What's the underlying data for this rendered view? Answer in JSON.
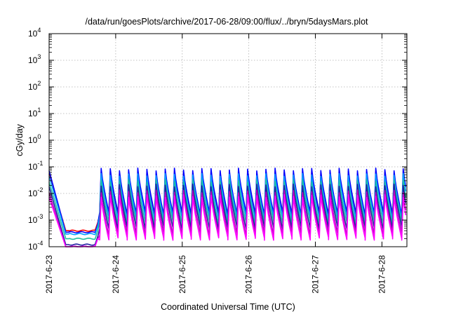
{
  "chart_data": {
    "type": "line",
    "title": "/data/run/goesPlots/archive/2017-06-28/09:00/flux/../bryn/5daysMars.plot",
    "xlabel": "Coordinated Universal Time (UTC)",
    "ylabel": "cGy/day",
    "yscale": "log",
    "ylim": [
      0.0001,
      10000
    ],
    "xlim": [
      "2017-06-23 00:00",
      "2017-06-28 09:00"
    ],
    "grid": true,
    "legend": "none",
    "x_ticks": [
      "2017-6-23",
      "2017-6-24",
      "2017-6-25",
      "2017-6-26",
      "2017-6-27",
      "2017-6-28"
    ],
    "y_ticks": [
      {
        "base": "10",
        "exp": "-4"
      },
      {
        "base": "10",
        "exp": "-3"
      },
      {
        "base": "10",
        "exp": "-2"
      },
      {
        "base": "10",
        "exp": "-1"
      },
      {
        "base": "10",
        "exp": "0"
      },
      {
        "base": "10",
        "exp": "1"
      },
      {
        "base": "10",
        "exp": "2"
      },
      {
        "base": "10",
        "exp": "3"
      },
      {
        "base": "10",
        "exp": "4"
      }
    ],
    "series": [
      {
        "color": "#ff0000",
        "peak": 0.06,
        "trough": 0.0015,
        "quiet": 0.0004
      },
      {
        "color": "#0000ff",
        "peak": 0.08,
        "trough": 0.0018,
        "quiet": 0.00035
      },
      {
        "color": "#00a0ff",
        "peak": 0.05,
        "trough": 0.0012,
        "quiet": 0.0003
      },
      {
        "color": "#20c0a0",
        "peak": 0.03,
        "trough": 0.0008,
        "quiet": 0.0002
      },
      {
        "color": "#2020a0",
        "peak": 0.02,
        "trough": 0.0005,
        "quiet": 0.00012
      },
      {
        "color": "#c000c0",
        "peak": 0.012,
        "trough": 0.0003,
        "quiet": 0.0001
      },
      {
        "color": "#ff00ff",
        "peak": 0.008,
        "trough": 0.0002,
        "quiet": 0.0001
      }
    ]
  }
}
